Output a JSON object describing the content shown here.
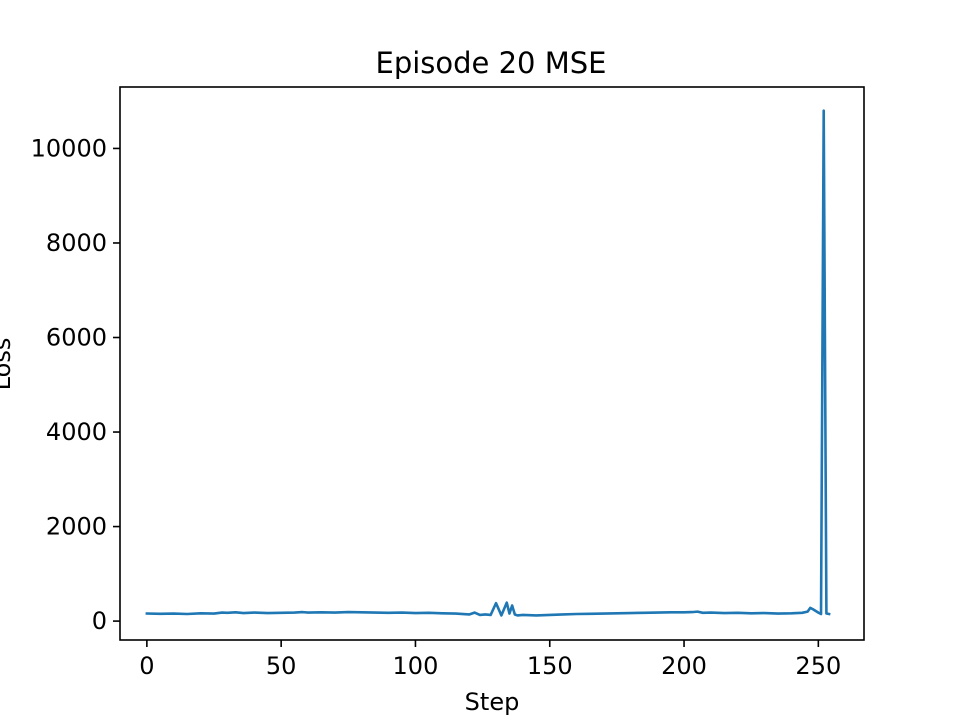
{
  "chart_data": {
    "type": "line",
    "title": "Episode 20 MSE",
    "xlabel": "Step",
    "ylabel": "Loss",
    "xlim": [
      -10,
      267
    ],
    "ylim": [
      -400,
      11300
    ],
    "xticks": [
      0,
      50,
      100,
      150,
      200,
      250
    ],
    "yticks": [
      0,
      2000,
      4000,
      6000,
      8000,
      10000
    ],
    "grid": false,
    "colors": {
      "series": "#1f77b4"
    },
    "series": [
      {
        "x": [
          0,
          5,
          10,
          15,
          20,
          25,
          28,
          30,
          33,
          36,
          40,
          45,
          50,
          55,
          58,
          60,
          65,
          70,
          75,
          80,
          85,
          90,
          95,
          100,
          105,
          110,
          115,
          120,
          122,
          124,
          126,
          128,
          130,
          132,
          134,
          135,
          136,
          137,
          138,
          140,
          145,
          150,
          155,
          160,
          165,
          170,
          175,
          180,
          185,
          190,
          195,
          200,
          203,
          205,
          207,
          210,
          215,
          220,
          225,
          230,
          235,
          240,
          244,
          246,
          247,
          248,
          250,
          251,
          252,
          253,
          254
        ],
        "y": [
          160,
          155,
          160,
          150,
          165,
          160,
          180,
          175,
          185,
          170,
          180,
          170,
          175,
          180,
          190,
          180,
          185,
          180,
          190,
          185,
          180,
          175,
          180,
          170,
          175,
          165,
          160,
          140,
          180,
          130,
          140,
          130,
          380,
          120,
          390,
          160,
          330,
          140,
          120,
          130,
          120,
          130,
          140,
          150,
          155,
          160,
          165,
          170,
          175,
          180,
          185,
          185,
          190,
          200,
          175,
          180,
          170,
          175,
          165,
          170,
          160,
          165,
          175,
          200,
          280,
          250,
          180,
          150,
          10800,
          160,
          150
        ]
      }
    ]
  }
}
